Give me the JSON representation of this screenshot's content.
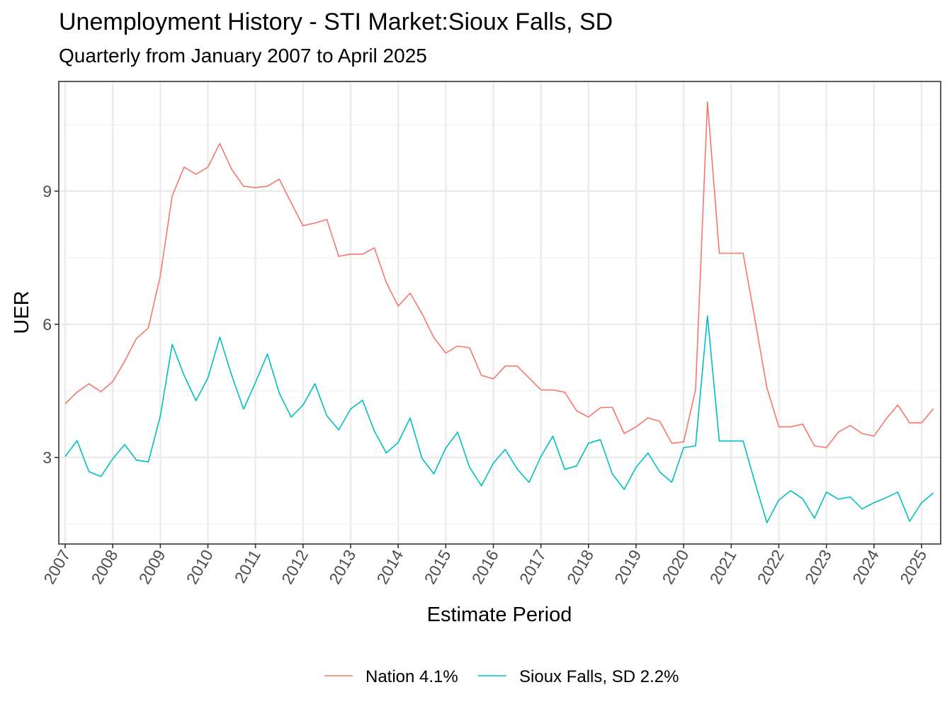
{
  "chart_data": {
    "type": "line",
    "title": "Unemployment History - STI Market:Sioux Falls, SD",
    "subtitle": "Quarterly from January 2007 to April 2025",
    "xlabel": "Estimate Period",
    "ylabel": "UER",
    "x_ticks": [
      "2007",
      "2008",
      "2009",
      "2010",
      "2011",
      "2012",
      "2013",
      "2014",
      "2015",
      "2016",
      "2017",
      "2018",
      "2019",
      "2020",
      "2021",
      "2022",
      "2023",
      "2024",
      "2025"
    ],
    "y_ticks": [
      3,
      6,
      9
    ],
    "ylim": [
      1.05,
      11.47
    ],
    "grid": true,
    "legend_position": "bottom",
    "x": [
      "2007-01",
      "2007-04",
      "2007-07",
      "2007-10",
      "2008-01",
      "2008-04",
      "2008-07",
      "2008-10",
      "2009-01",
      "2009-04",
      "2009-07",
      "2009-10",
      "2010-01",
      "2010-04",
      "2010-07",
      "2010-10",
      "2011-01",
      "2011-04",
      "2011-07",
      "2011-10",
      "2012-01",
      "2012-04",
      "2012-07",
      "2012-10",
      "2013-01",
      "2013-04",
      "2013-07",
      "2013-10",
      "2014-01",
      "2014-04",
      "2014-07",
      "2014-10",
      "2015-01",
      "2015-04",
      "2015-07",
      "2015-10",
      "2016-01",
      "2016-04",
      "2016-07",
      "2016-10",
      "2017-01",
      "2017-04",
      "2017-07",
      "2017-10",
      "2018-01",
      "2018-04",
      "2018-07",
      "2018-10",
      "2019-01",
      "2019-04",
      "2019-07",
      "2019-10",
      "2020-01",
      "2020-04",
      "2020-07",
      "2020-10",
      "2021-01",
      "2021-04",
      "2021-07",
      "2021-10",
      "2022-01",
      "2022-04",
      "2022-07",
      "2022-10",
      "2023-01",
      "2023-04",
      "2023-07",
      "2023-10",
      "2024-01",
      "2024-04",
      "2024-07",
      "2024-10",
      "2025-01",
      "2025-04"
    ],
    "series": [
      {
        "name": "Nation 4.1%",
        "color": "#F8766D",
        "values": [
          4.21,
          4.47,
          4.66,
          4.48,
          4.71,
          5.17,
          5.68,
          5.92,
          7.09,
          8.89,
          9.54,
          9.38,
          9.54,
          10.07,
          9.49,
          9.11,
          9.08,
          9.11,
          9.27,
          8.74,
          8.22,
          8.28,
          8.36,
          7.53,
          7.58,
          7.58,
          7.72,
          6.94,
          6.41,
          6.7,
          6.24,
          5.7,
          5.35,
          5.51,
          5.47,
          4.85,
          4.77,
          5.06,
          5.06,
          4.79,
          4.52,
          4.52,
          4.47,
          4.05,
          3.91,
          4.12,
          4.13,
          3.54,
          3.69,
          3.89,
          3.81,
          3.32,
          3.35,
          4.53,
          11.01,
          7.6,
          7.6,
          7.6,
          6.1,
          4.57,
          3.69,
          3.69,
          3.75,
          3.26,
          3.22,
          3.57,
          3.72,
          3.54,
          3.48,
          3.86,
          4.18,
          3.78,
          3.78,
          4.1
        ]
      },
      {
        "name": "Sioux Falls, SD 2.2%",
        "color": "#00BFC4",
        "values": [
          3.02,
          3.38,
          2.68,
          2.57,
          2.97,
          3.29,
          2.94,
          2.9,
          3.93,
          5.55,
          4.85,
          4.28,
          4.79,
          5.71,
          4.85,
          4.09,
          4.69,
          5.33,
          4.45,
          3.91,
          4.18,
          4.66,
          3.94,
          3.62,
          4.09,
          4.29,
          3.59,
          3.1,
          3.34,
          3.89,
          2.98,
          2.63,
          3.21,
          3.57,
          2.78,
          2.36,
          2.87,
          3.18,
          2.74,
          2.44,
          3.02,
          3.48,
          2.73,
          2.81,
          3.32,
          3.4,
          2.63,
          2.28,
          2.78,
          3.1,
          2.67,
          2.44,
          3.22,
          3.26,
          6.19,
          3.37,
          3.37,
          3.37,
          2.43,
          1.53,
          2.04,
          2.25,
          2.07,
          1.63,
          2.22,
          2.06,
          2.11,
          1.84,
          1.98,
          2.09,
          2.22,
          1.56,
          1.98,
          2.2
        ]
      }
    ]
  }
}
